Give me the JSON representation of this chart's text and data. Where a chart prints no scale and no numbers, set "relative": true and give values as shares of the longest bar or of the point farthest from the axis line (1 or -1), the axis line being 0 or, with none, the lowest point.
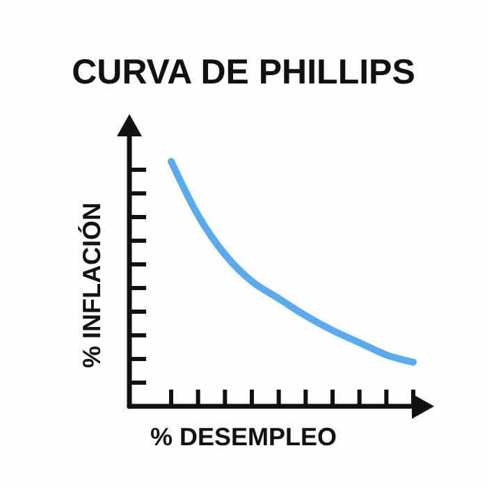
{
  "chart_data": {
    "type": "line",
    "title": "CURVA DE PHILLIPS",
    "xlabel": "% DESEMPLEO",
    "ylabel": "% INFLACIÓN",
    "relative": true,
    "marker": "none",
    "line_style": "solid",
    "categories": [
      null,
      null,
      null,
      null,
      null,
      null,
      null,
      null,
      null,
      null
    ],
    "series": [
      {
        "color": "#5aaaf0",
        "values": [
          1.0,
          0.78,
          0.62,
          0.51,
          0.44,
          0.37,
          0.31,
          0.26,
          0.21,
          0.18
        ]
      }
    ]
  }
}
